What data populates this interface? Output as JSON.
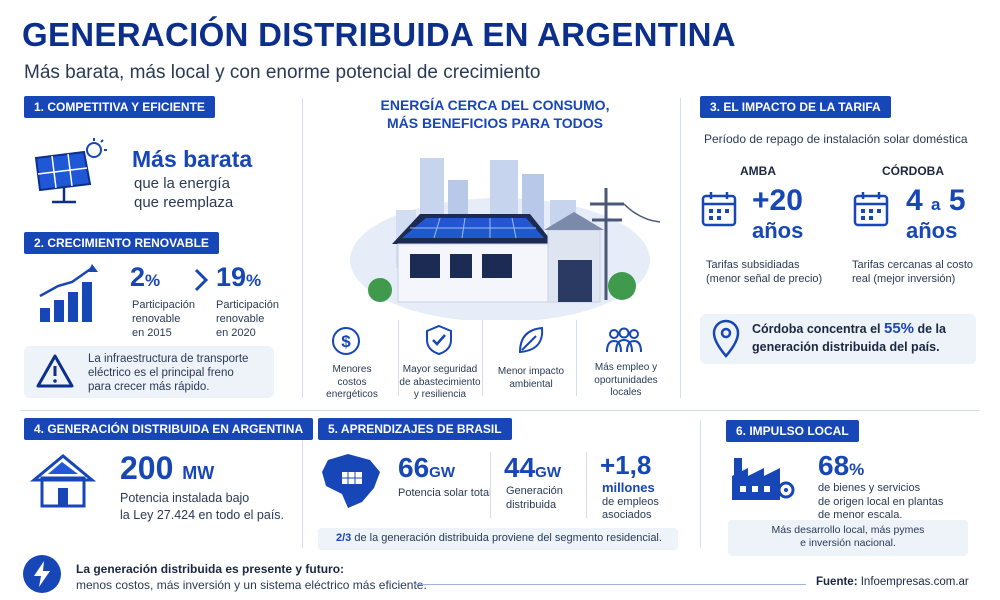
{
  "header": {
    "title": "GENERACIÓN DISTRIBUIDA EN ARGENTINA",
    "subtitle": "Más barata, más local y con enorme potencial de crecimiento"
  },
  "s1": {
    "tag": "1.  COMPETITIVA Y EFICIENTE",
    "headline": "Más barata",
    "line1": "que la energía",
    "line2": "que reemplaza"
  },
  "s2": {
    "tag": "2.  CRECIMIENTO RENOVABLE",
    "v1": "2",
    "u1": "%",
    "d1a": "Participación",
    "d1b": "renovable",
    "d1c": "en 2015",
    "v2": "19",
    "u2": "%",
    "d2a": "Participación",
    "d2b": "renovable",
    "d2c": "en 2020",
    "warn1": "La infraestructura de transporte",
    "warn2": "eléctrico es el principal freno",
    "warn3": "para crecer más rápido."
  },
  "center": {
    "heading1": "ENERGÍA CERCA DEL CONSUMO,",
    "heading2": "MÁS BENEFICIOS PARA TODOS",
    "b1": [
      "Menores",
      "costos",
      "energéticos"
    ],
    "b2": [
      "Mayor seguridad",
      "de abastecimiento",
      "y resiliencia"
    ],
    "b3": [
      "Menor impacto",
      "ambiental"
    ],
    "b4": [
      "Más empleo y",
      "oportunidades",
      "locales"
    ]
  },
  "s3": {
    "tag": "3.  EL IMPACTO DE LA TARIFA",
    "intro": "Período de repago de instalación solar doméstica",
    "amba_label": "AMBA",
    "amba_value": "+20",
    "amba_unit": "años",
    "amba_d1": "Tarifas subsidiadas",
    "amba_d2": "(menor señal de precio)",
    "cba_label": "CÓRDOBA",
    "cba_value_a": "4",
    "cba_value_mid": "a",
    "cba_value_b": "5",
    "cba_unit": "años",
    "cba_d1": "Tarifas cercanas al costo",
    "cba_d2": "real (mejor inversión)",
    "note_pre": "Córdoba concentra el ",
    "note_pct": "55%",
    "note_post": " de la",
    "note_line2": "generación distribuida del país."
  },
  "s4": {
    "tag": "4.  GENERACIÓN DISTRIBUIDA EN ARGENTINA",
    "value": "200",
    "unit": "MW",
    "d1": "Potencia instalada bajo",
    "d2": "la Ley 27.424 en todo el país."
  },
  "s5": {
    "tag": "5.  APRENDIZAJES DE BRASIL",
    "v1": "66",
    "u1": "GW",
    "d1": "Potencia solar total",
    "v2": "44",
    "u2": "GW",
    "d2a": "Generación",
    "d2b": "distribuida",
    "v3": "+1,8",
    "u3": "millones",
    "d3a": "de empleos",
    "d3b": "asociados",
    "note_frac": "2/3",
    "note_text": " de la generación distribuida proviene del segmento residencial."
  },
  "s6": {
    "tag": "6.  IMPULSO LOCAL",
    "value": "68",
    "unit": "%",
    "d1": "de bienes y servicios",
    "d2": "de origen local en plantas",
    "d3": "de menor escala.",
    "note1": "Más desarrollo local, más pymes",
    "note2": "e inversión nacional."
  },
  "footer": {
    "line1": "La generación distribuida es presente y futuro:",
    "line2": "menos costos, más inversión y un sistema eléctrico más eficiente.",
    "source_label": "Fuente:",
    "source_value": "Infoempresas.com.ar"
  },
  "colors": {
    "navy": "#0d2f8c",
    "accent": "#1746b6",
    "panel": "#eef2f9"
  }
}
